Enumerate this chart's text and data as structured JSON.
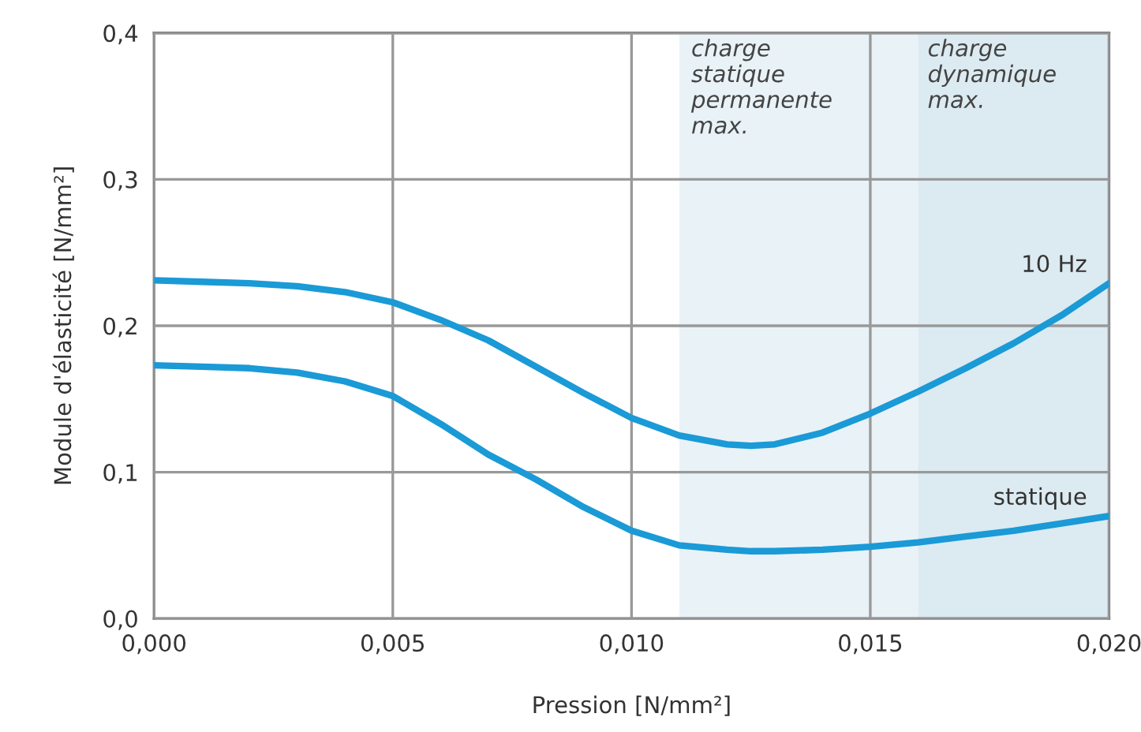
{
  "chart_data": {
    "type": "line",
    "xlabel": "Pression [N/mm²]",
    "ylabel": "Module d'élasticité [N/mm²]",
    "x": [
      0,
      0.001,
      0.002,
      0.003,
      0.004,
      0.005,
      0.006,
      0.007,
      0.008,
      0.009,
      0.01,
      0.011,
      0.012,
      0.0125,
      0.013,
      0.014,
      0.015,
      0.016,
      0.017,
      0.018,
      0.019,
      0.02
    ],
    "series": [
      {
        "name": "10 Hz",
        "color": "#1a9ad6",
        "values": [
          0.231,
          0.23,
          0.229,
          0.227,
          0.223,
          0.216,
          0.204,
          0.19,
          0.172,
          0.154,
          0.137,
          0.125,
          0.119,
          0.118,
          0.119,
          0.127,
          0.14,
          0.155,
          0.171,
          0.188,
          0.207,
          0.229
        ]
      },
      {
        "name": "statique",
        "color": "#1a9ad6",
        "values": [
          0.173,
          0.172,
          0.171,
          0.168,
          0.162,
          0.152,
          0.133,
          0.112,
          0.095,
          0.076,
          0.06,
          0.05,
          0.047,
          0.046,
          0.046,
          0.047,
          0.049,
          0.052,
          0.056,
          0.06,
          0.065,
          0.07
        ]
      }
    ],
    "xlim": [
      0,
      0.02
    ],
    "ylim": [
      0,
      0.4
    ],
    "xticks": [
      {
        "value": 0,
        "label": "0,000"
      },
      {
        "value": 0.005,
        "label": "0,005"
      },
      {
        "value": 0.01,
        "label": "0,010"
      },
      {
        "value": 0.015,
        "label": "0,015"
      },
      {
        "value": 0.02,
        "label": "0,020"
      }
    ],
    "yticks": [
      {
        "value": 0,
        "label": "0,0"
      },
      {
        "value": 0.1,
        "label": "0,1"
      },
      {
        "value": 0.2,
        "label": "0,2"
      },
      {
        "value": 0.3,
        "label": "0,3"
      },
      {
        "value": 0.4,
        "label": "0,4"
      }
    ],
    "bands": [
      {
        "axis": "x",
        "from": 0.011,
        "to": 0.016,
        "label": "charge\nstatique\npermanente\nmax.",
        "color": "#e9f2f7"
      },
      {
        "axis": "x",
        "from": 0.016,
        "to": 0.02,
        "label": "charge\ndynamique\nmax.",
        "color": "#dceaf1"
      }
    ],
    "grid": true,
    "legend": false,
    "line_style": "solid",
    "marker": "none"
  }
}
